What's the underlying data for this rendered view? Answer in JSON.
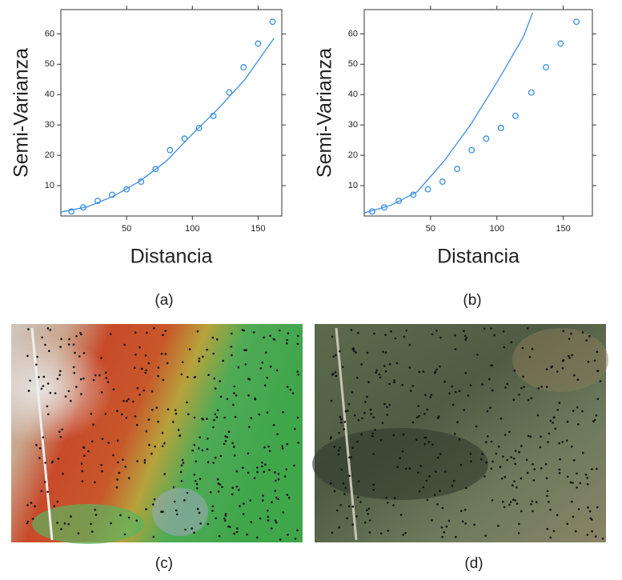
{
  "chart_data": [
    {
      "type": "scatter",
      "x_label": "Distancia",
      "y_label": "Semi-Varianza",
      "color": "#3b8fe4",
      "xlim": [
        0,
        168
      ],
      "ylim": [
        0,
        68
      ],
      "xticks": [
        50,
        100,
        150
      ],
      "yticks": [
        10,
        20,
        30,
        40,
        50,
        60
      ],
      "points": {
        "x": [
          8,
          17,
          28,
          39,
          50,
          61,
          72,
          83,
          94,
          105,
          116,
          128,
          139,
          150,
          161
        ],
        "y": [
          1.5,
          2.8,
          5,
          7,
          8.8,
          11.3,
          15.5,
          21.7,
          25.5,
          29,
          33,
          40.7,
          49,
          56.8,
          64
        ]
      },
      "curve": {
        "x": [
          0,
          20,
          40,
          60,
          80,
          100,
          120,
          140,
          162
        ],
        "y": [
          1.3,
          3,
          6.5,
          11.5,
          18,
          27,
          35.5,
          45,
          58.5
        ]
      }
    },
    {
      "type": "scatter",
      "x_label": "Distancia",
      "y_label": "Semi-Varianza",
      "color": "#3b8fe4",
      "xlim": [
        0,
        172
      ],
      "ylim": [
        0,
        68
      ],
      "xticks": [
        50,
        100,
        150
      ],
      "yticks": [
        10,
        20,
        30,
        40,
        50,
        60
      ],
      "points": {
        "x": [
          6,
          15,
          26,
          37,
          48,
          59,
          70,
          81,
          92,
          103,
          114,
          126,
          137,
          148,
          160
        ],
        "y": [
          1.5,
          2.8,
          5,
          7,
          8.8,
          11.3,
          15.5,
          21.7,
          25.5,
          29,
          33,
          40.7,
          49,
          56.8,
          64
        ]
      },
      "curve": {
        "x": [
          0,
          20,
          40,
          60,
          80,
          100,
          120,
          127
        ],
        "y": [
          1,
          3.5,
          8,
          18,
          30,
          44,
          59,
          67
        ]
      }
    }
  ],
  "captions": [
    "(a)",
    "(b)",
    "(c)",
    "(d)"
  ]
}
